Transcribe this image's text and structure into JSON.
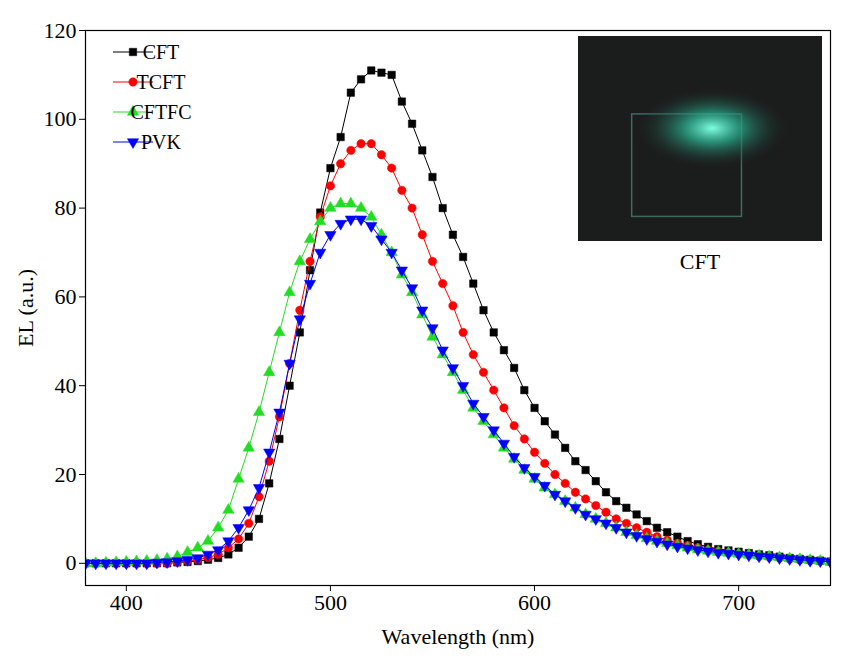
{
  "chart_data": {
    "type": "line",
    "x_label": "Wavelength (nm)",
    "y_label": "EL (a.u.)",
    "annotations": [
      "CFT"
    ],
    "x": [
      380,
      385,
      390,
      395,
      400,
      405,
      410,
      415,
      420,
      425,
      430,
      435,
      440,
      445,
      450,
      455,
      460,
      465,
      470,
      475,
      480,
      485,
      490,
      495,
      500,
      505,
      510,
      515,
      520,
      525,
      530,
      535,
      540,
      545,
      550,
      555,
      560,
      565,
      570,
      575,
      580,
      585,
      590,
      595,
      600,
      605,
      610,
      615,
      620,
      625,
      630,
      635,
      640,
      645,
      650,
      655,
      660,
      665,
      670,
      675,
      680,
      685,
      690,
      695,
      700,
      705,
      710,
      715,
      720,
      725,
      730,
      735,
      740,
      745
    ],
    "series": [
      {
        "name": "CFT",
        "color": "#000000",
        "marker": "square",
        "line_style": "solid",
        "values": [
          0,
          0,
          0,
          0,
          0,
          0,
          0,
          0,
          0,
          0.2,
          0.3,
          0.5,
          0.8,
          1.2,
          2,
          3.5,
          6,
          10,
          18,
          28,
          40,
          52,
          66,
          79,
          89,
          96,
          106,
          109,
          111,
          110.5,
          110,
          104,
          99,
          93,
          87,
          80,
          74,
          69,
          63,
          57,
          52,
          48,
          44,
          39,
          35,
          32,
          29,
          26,
          23,
          21,
          18.5,
          16,
          14,
          12.5,
          11,
          9.5,
          8,
          7,
          6,
          5,
          4.3,
          3.7,
          3.2,
          2.9,
          2.6,
          2.3,
          2,
          1.8,
          1.5,
          1.2,
          1,
          0.8,
          0.6,
          0.4
        ]
      },
      {
        "name": "TCFT",
        "color": "#ff0000",
        "marker": "circle",
        "line_style": "solid",
        "values": [
          0,
          0,
          0,
          0,
          0,
          0,
          0,
          0,
          0,
          0.3,
          0.5,
          0.8,
          1.3,
          2,
          3.5,
          5.5,
          9,
          15,
          23,
          33,
          45,
          57,
          68,
          78,
          85,
          90,
          93,
          94.5,
          94.5,
          92,
          89,
          84,
          80,
          74,
          68,
          63,
          58,
          52,
          47,
          43,
          39,
          35,
          31,
          28,
          25,
          22.5,
          20,
          18,
          16,
          14.5,
          13,
          11.5,
          10,
          9,
          8,
          7,
          6,
          5.2,
          4.5,
          4,
          3.5,
          3,
          2.7,
          2.4,
          2.1,
          1.9,
          1.6,
          1.4,
          1.2,
          1,
          0.8,
          0.6,
          0.5,
          0.3
        ]
      },
      {
        "name": "CFTFC",
        "color": "#22dd22",
        "marker": "triangle-up",
        "line_style": "solid",
        "values": [
          0,
          0,
          0.1,
          0.2,
          0.3,
          0.4,
          0.5,
          0.7,
          1,
          1.5,
          2.5,
          3.5,
          5,
          8,
          12,
          19,
          26,
          34,
          43,
          52,
          61,
          68,
          73,
          77,
          80,
          81,
          81,
          80,
          78,
          74,
          70,
          65,
          61,
          56,
          51,
          47,
          43,
          39,
          35,
          32,
          29,
          26,
          23.5,
          21,
          19,
          17,
          15.5,
          14,
          12.5,
          11,
          10,
          9,
          8,
          7,
          6.3,
          5.6,
          5,
          4.5,
          4,
          3.5,
          3.1,
          2.8,
          2.5,
          2.3,
          2.1,
          1.9,
          1.7,
          1.5,
          1.3,
          1.1,
          0.9,
          0.7,
          0.5,
          0.3
        ]
      },
      {
        "name": "PVK",
        "color": "#0000ff",
        "marker": "triangle-down",
        "line_style": "solid",
        "values": [
          0,
          0,
          0,
          0,
          0,
          0,
          0,
          0.2,
          0.3,
          0.5,
          0.8,
          1.2,
          2,
          3,
          5,
          8,
          12,
          17,
          25,
          34,
          45,
          55,
          63,
          70,
          74,
          76.5,
          77.5,
          77.5,
          76,
          73,
          70,
          66,
          62,
          57,
          53,
          48,
          44,
          40,
          36,
          33,
          30,
          27,
          24,
          21.5,
          19.5,
          17.5,
          15.5,
          14,
          12.5,
          11,
          10,
          9,
          8,
          7,
          6.2,
          5.5,
          4.9,
          4.3,
          3.8,
          3.4,
          3,
          2.7,
          2.4,
          2.2,
          2,
          1.8,
          1.6,
          1.4,
          1.2,
          1,
          0.8,
          0.6,
          0.5,
          0.3
        ]
      }
    ],
    "xlim": [
      380,
      745
    ],
    "ylim": [
      -5,
      120
    ],
    "xticks": [
      400,
      500,
      600,
      700
    ],
    "yticks": [
      0,
      20,
      40,
      60,
      80,
      100,
      120
    ],
    "grid": false,
    "legend": "upper left"
  }
}
